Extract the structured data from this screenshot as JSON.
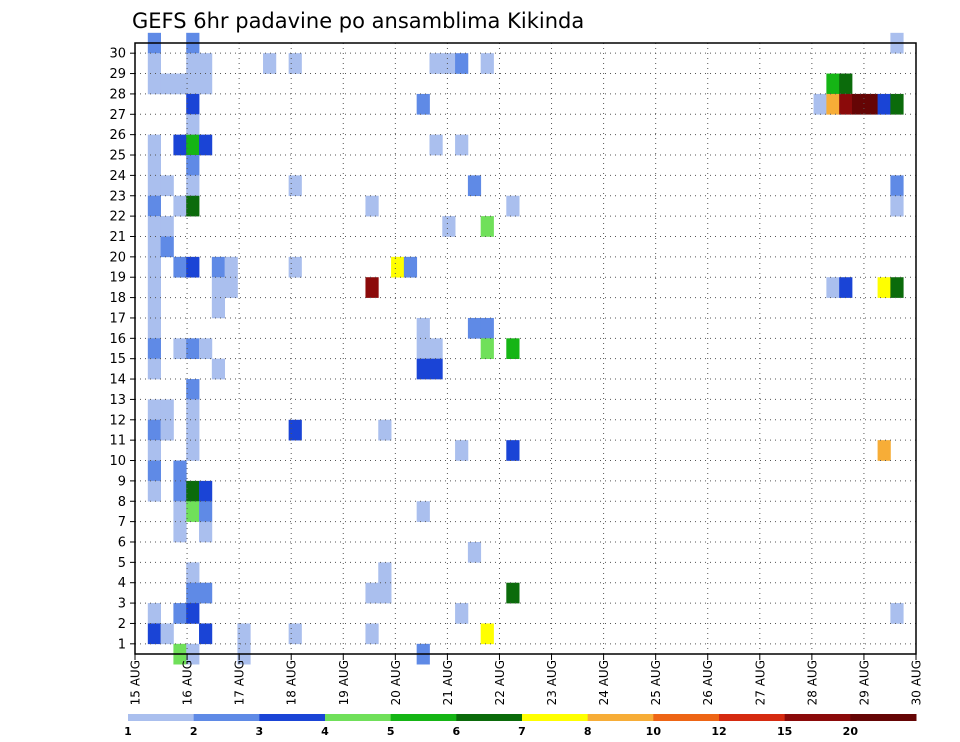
{
  "chart_data": {
    "type": "heatmap",
    "title": "GEFS 6hr padavine po ansamblima Kikinda",
    "x_tick_labels": [
      "15 AUG",
      "16 AUG",
      "17 AUG",
      "18 AUG",
      "19 AUG",
      "20 AUG",
      "21 AUG",
      "22 AUG",
      "23 AUG",
      "24 AUG",
      "25 AUG",
      "26 AUG",
      "27 AUG",
      "28 AUG",
      "29 AUG",
      "30 AUG"
    ],
    "y_tick_labels": [
      "1",
      "2",
      "3",
      "4",
      "5",
      "6",
      "7",
      "8",
      "9",
      "10",
      "11",
      "12",
      "13",
      "14",
      "15",
      "16",
      "17",
      "18",
      "19",
      "20",
      "21",
      "22",
      "23",
      "24",
      "25",
      "26",
      "27",
      "28",
      "29",
      "30"
    ],
    "ylim": [
      0,
      30
    ],
    "time_steps": 61,
    "grid": true,
    "legend_position": "bottom",
    "legend": {
      "bounds": [
        1,
        2,
        3,
        4,
        5,
        6,
        7,
        8,
        10,
        12,
        15,
        20
      ],
      "colors": [
        "#aabfee",
        "#5f8ae6",
        "#1a44d6",
        "#70e05a",
        "#15b515",
        "#0b6b0b",
        "#ffff00",
        "#f7ad37",
        "#ee6515",
        "#d52a10",
        "#8b0a0a",
        "#650505"
      ]
    },
    "cells": [
      [
        30,
        1,
        2
      ],
      [
        30,
        4,
        2
      ],
      [
        30,
        59,
        1
      ],
      [
        29,
        1,
        1
      ],
      [
        29,
        4,
        1
      ],
      [
        29,
        5,
        1
      ],
      [
        29,
        10,
        1
      ],
      [
        29,
        12,
        1
      ],
      [
        29,
        23,
        1
      ],
      [
        29,
        24,
        1
      ],
      [
        29,
        25,
        2
      ],
      [
        29,
        27,
        1
      ],
      [
        28,
        1,
        1
      ],
      [
        28,
        2,
        1
      ],
      [
        28,
        3,
        1
      ],
      [
        28,
        4,
        1
      ],
      [
        28,
        5,
        1
      ],
      [
        28,
        54,
        5
      ],
      [
        28,
        55,
        6
      ],
      [
        27,
        4,
        3
      ],
      [
        27,
        22,
        2
      ],
      [
        27,
        53,
        1
      ],
      [
        27,
        54,
        8
      ],
      [
        27,
        55,
        15
      ],
      [
        27,
        56,
        20
      ],
      [
        27,
        57,
        20
      ],
      [
        27,
        58,
        3
      ],
      [
        27,
        59,
        6
      ],
      [
        26,
        4,
        1
      ],
      [
        25,
        1,
        1
      ],
      [
        25,
        3,
        3
      ],
      [
        25,
        4,
        5
      ],
      [
        25,
        5,
        3
      ],
      [
        25,
        23,
        1
      ],
      [
        25,
        25,
        1
      ],
      [
        24,
        1,
        1
      ],
      [
        24,
        4,
        2
      ],
      [
        23,
        1,
        1
      ],
      [
        23,
        2,
        1
      ],
      [
        23,
        4,
        1
      ],
      [
        23,
        12,
        1
      ],
      [
        23,
        26,
        2
      ],
      [
        23,
        59,
        2
      ],
      [
        22,
        1,
        2
      ],
      [
        22,
        3,
        1
      ],
      [
        22,
        4,
        6
      ],
      [
        22,
        18,
        1
      ],
      [
        22,
        29,
        1
      ],
      [
        22,
        59,
        1
      ],
      [
        21,
        1,
        1
      ],
      [
        21,
        2,
        1
      ],
      [
        21,
        24,
        1
      ],
      [
        21,
        27,
        4
      ],
      [
        20,
        1,
        1
      ],
      [
        20,
        2,
        2
      ],
      [
        19,
        1,
        1
      ],
      [
        19,
        3,
        2
      ],
      [
        19,
        4,
        3
      ],
      [
        19,
        6,
        2
      ],
      [
        19,
        7,
        1
      ],
      [
        19,
        12,
        1
      ],
      [
        19,
        20,
        7
      ],
      [
        19,
        21,
        2
      ],
      [
        18,
        1,
        1
      ],
      [
        18,
        6,
        1
      ],
      [
        18,
        7,
        1
      ],
      [
        18,
        18,
        15
      ],
      [
        18,
        54,
        1
      ],
      [
        18,
        55,
        3
      ],
      [
        18,
        58,
        7
      ],
      [
        18,
        59,
        6
      ],
      [
        17,
        1,
        1
      ],
      [
        17,
        6,
        1
      ],
      [
        16,
        1,
        1
      ],
      [
        16,
        26,
        2
      ],
      [
        16,
        27,
        2
      ],
      [
        16,
        22,
        1
      ],
      [
        15,
        1,
        2
      ],
      [
        15,
        3,
        1
      ],
      [
        15,
        4,
        2
      ],
      [
        15,
        5,
        1
      ],
      [
        15,
        22,
        1
      ],
      [
        15,
        23,
        1
      ],
      [
        15,
        27,
        4
      ],
      [
        15,
        29,
        5
      ],
      [
        14,
        1,
        1
      ],
      [
        14,
        6,
        1
      ],
      [
        14,
        22,
        3
      ],
      [
        14,
        23,
        3
      ],
      [
        13,
        4,
        2
      ],
      [
        12,
        1,
        1
      ],
      [
        12,
        2,
        1
      ],
      [
        12,
        4,
        1
      ],
      [
        11,
        1,
        2
      ],
      [
        11,
        2,
        1
      ],
      [
        11,
        4,
        1
      ],
      [
        11,
        12,
        3
      ],
      [
        11,
        19,
        1
      ],
      [
        10,
        1,
        1
      ],
      [
        10,
        4,
        1
      ],
      [
        10,
        25,
        1
      ],
      [
        10,
        29,
        3
      ],
      [
        10,
        58,
        8
      ],
      [
        9,
        1,
        2
      ],
      [
        9,
        3,
        2
      ],
      [
        8,
        1,
        1
      ],
      [
        8,
        3,
        2
      ],
      [
        8,
        4,
        6
      ],
      [
        8,
        5,
        3
      ],
      [
        7,
        3,
        1
      ],
      [
        7,
        4,
        4
      ],
      [
        7,
        5,
        2
      ],
      [
        7,
        22,
        1
      ],
      [
        6,
        3,
        1
      ],
      [
        6,
        5,
        1
      ],
      [
        5,
        26,
        1
      ],
      [
        4,
        4,
        1
      ],
      [
        4,
        19,
        1
      ],
      [
        3,
        4,
        2
      ],
      [
        3,
        5,
        2
      ],
      [
        3,
        18,
        1
      ],
      [
        3,
        19,
        1
      ],
      [
        3,
        29,
        6
      ],
      [
        2,
        1,
        1
      ],
      [
        2,
        3,
        2
      ],
      [
        2,
        4,
        3
      ],
      [
        2,
        25,
        1
      ],
      [
        2,
        59,
        1
      ],
      [
        1,
        1,
        3
      ],
      [
        1,
        2,
        1
      ],
      [
        1,
        5,
        3
      ],
      [
        1,
        8,
        1
      ],
      [
        1,
        12,
        1
      ],
      [
        1,
        18,
        1
      ],
      [
        1,
        27,
        7
      ],
      [
        0,
        3,
        4
      ],
      [
        0,
        4,
        1
      ],
      [
        0,
        8,
        1
      ],
      [
        0,
        22,
        2
      ]
    ]
  }
}
